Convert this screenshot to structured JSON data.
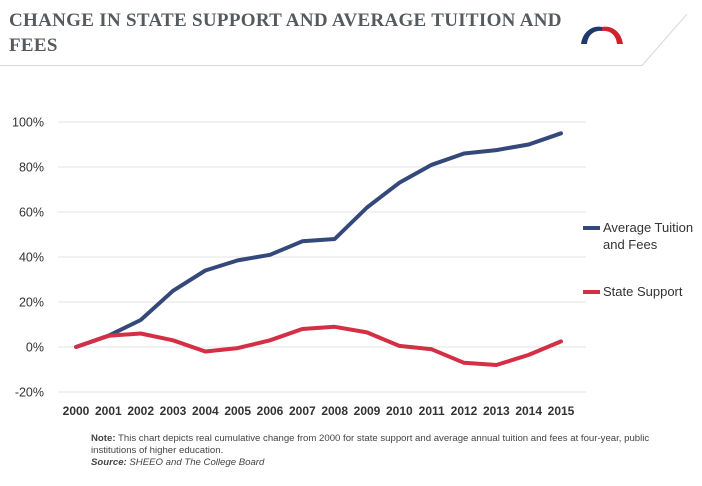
{
  "header": {
    "title": "CHANGE IN STATE SUPPORT AND AVERAGE TUITION AND FEES"
  },
  "logo": {
    "icon": "arch-logo-icon",
    "colors": [
      "#1e3a6e",
      "#d0202e"
    ]
  },
  "chart_data": {
    "type": "line",
    "title": "CHANGE IN STATE SUPPORT AND AVERAGE TUITION AND FEES",
    "xlabel": "",
    "ylabel": "",
    "x": [
      "2000",
      "2001",
      "2002",
      "2003",
      "2004",
      "2005",
      "2006",
      "2007",
      "2008",
      "2009",
      "2010",
      "2011",
      "2012",
      "2013",
      "2014",
      "2015"
    ],
    "ylim": [
      -20,
      100
    ],
    "yticks": [
      -20,
      0,
      20,
      40,
      60,
      80,
      100
    ],
    "ytick_labels": [
      "-20%",
      "0%",
      "20%",
      "40%",
      "60%",
      "80%",
      "100%"
    ],
    "grid": true,
    "legend_position": "right",
    "series": [
      {
        "name": "Average Tuition and Fees",
        "color": "#34497a",
        "values": [
          0,
          5,
          12,
          25,
          34,
          38.5,
          41,
          47,
          48,
          62,
          73,
          81,
          86,
          87.5,
          90,
          95
        ]
      },
      {
        "name": "State Support",
        "color": "#d32f45",
        "values": [
          0,
          5,
          6,
          3,
          -2,
          -0.5,
          3,
          8,
          9,
          6.5,
          0.5,
          -1,
          -7,
          -8,
          -3.5,
          2.5
        ]
      }
    ]
  },
  "legend": {
    "items": [
      {
        "label_line1": "Average Tuition",
        "label_line2": "and Fees"
      },
      {
        "label_line1": "State Support",
        "label_line2": ""
      }
    ]
  },
  "footnote": {
    "note_label": "Note:",
    "note_text": "This chart depicts real cumulative change from 2000 for state support and average annual tuition and fees at four-year, public institutions of higher education.",
    "source_label": "Source:",
    "source_text": "SHEEO and The College Board"
  }
}
